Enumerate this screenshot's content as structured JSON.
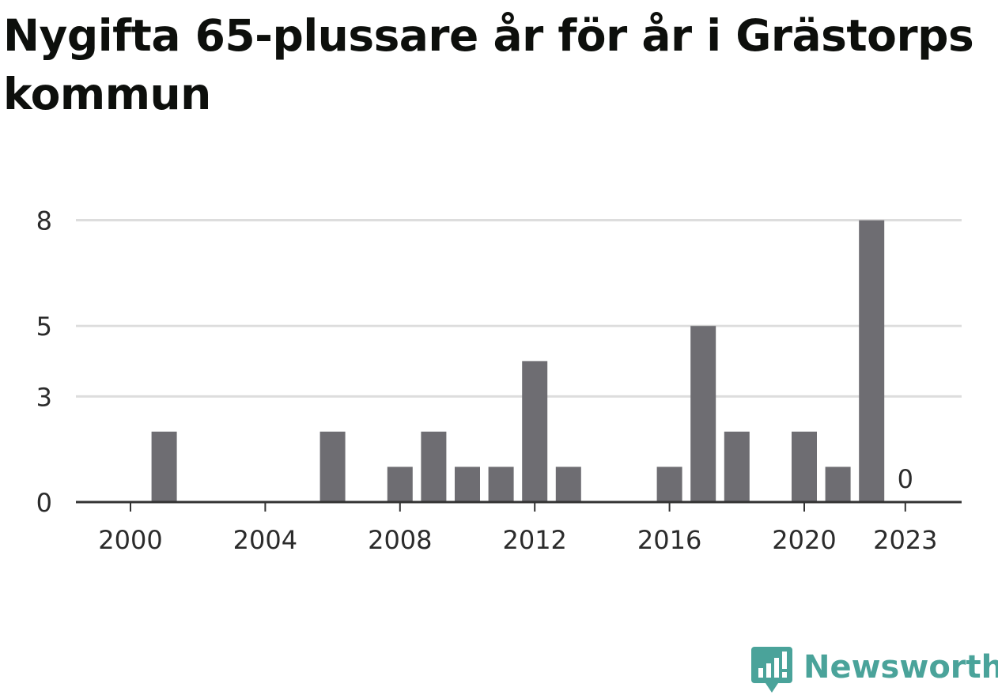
{
  "title": "Nygifta 65-plussare år för år i Grästorps kommun",
  "brand": {
    "name": "Newsworthy",
    "icon": "newsworthy-logo-icon",
    "color": "#4aa39a"
  },
  "colors": {
    "bar": "#6e6d72",
    "grid": "#dddddd",
    "axis": "#333333"
  },
  "chart_data": {
    "type": "bar",
    "title": "Nygifta 65-plussare år för år i Grästorps kommun",
    "xlabel": "",
    "ylabel": "",
    "categories": [
      "2000",
      "2001",
      "2002",
      "2003",
      "2004",
      "2005",
      "2006",
      "2007",
      "2008",
      "2009",
      "2010",
      "2011",
      "2012",
      "2013",
      "2014",
      "2015",
      "2016",
      "2017",
      "2018",
      "2019",
      "2020",
      "2021",
      "2022",
      "2023"
    ],
    "values": [
      0,
      2,
      0,
      0,
      0,
      0,
      2,
      0,
      1,
      2,
      1,
      1,
      4,
      1,
      0,
      0,
      1,
      5,
      2,
      0,
      2,
      1,
      8,
      0
    ],
    "x_tick_labels": [
      "2000",
      "2004",
      "2008",
      "2012",
      "2016",
      "2020",
      "2023"
    ],
    "y_tick_labels": [
      "0",
      "3",
      "5",
      "8"
    ],
    "ylim": [
      0,
      9
    ],
    "grid": true,
    "annotations": [
      {
        "category": "2023",
        "text": "0"
      }
    ]
  }
}
